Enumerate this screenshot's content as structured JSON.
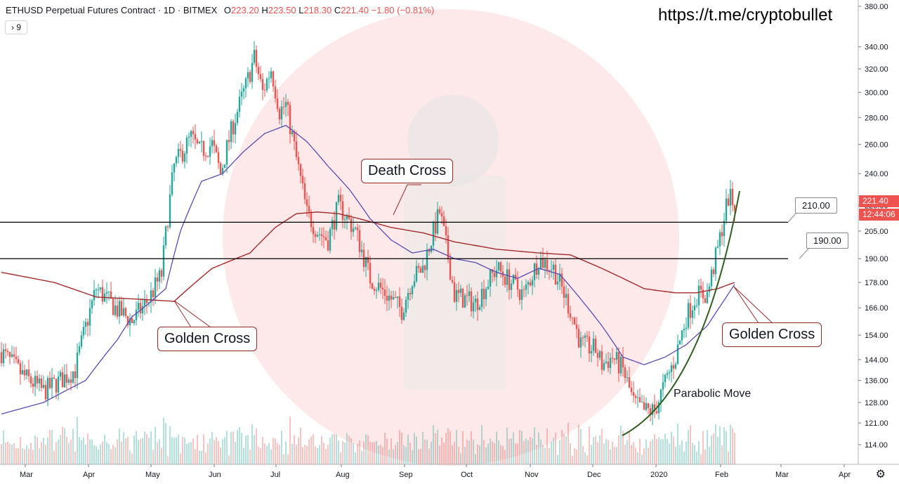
{
  "header": {
    "symbol": "ETHUSD Perpetual Futures Contract · 1D · BITMEX",
    "open_label": "O",
    "open": "223.20",
    "high_label": "H",
    "high": "223.50",
    "low_label": "L",
    "low": "218.30",
    "close_label": "C",
    "close": "221.40",
    "change": "−1.80 (−0.81%)"
  },
  "indicator_button": "› 9",
  "watermark": "https://t.me/cryptobullet",
  "annotations": {
    "death_cross": "Death Cross",
    "golden_cross_left": "Golden Cross",
    "golden_cross_right": "Golden Cross",
    "parabolic": "Parabolic Move",
    "level_210": "210.00",
    "level_190": "190.00"
  },
  "price_tag": {
    "price": "221.40",
    "countdown": "12:44:06"
  },
  "settings_icon": "gear-icon",
  "colors": {
    "up": "#26a69a",
    "down": "#ef5350",
    "ma_fast": "#5b4bb3",
    "ma_slow": "#a52a2a",
    "curve": "#2e5e1e",
    "level_line": "#000000",
    "background_circle": "#fde9e9"
  },
  "chart_data": {
    "type": "candlestick",
    "scale": "log",
    "y_ticks": [
      114,
      121,
      128,
      136,
      144,
      154,
      166,
      178,
      190,
      205,
      220,
      240,
      260,
      280,
      300,
      320,
      340,
      380
    ],
    "ylim": [
      108,
      385
    ],
    "x_months": [
      "Mar",
      "Apr",
      "May",
      "Jun",
      "Jul",
      "Aug",
      "Sep",
      "Oct",
      "Nov",
      "Dec",
      "2020",
      "Feb",
      "Mar",
      "Apr"
    ],
    "horizontal_levels": [
      210,
      190
    ],
    "close_path_days": [
      0,
      10,
      20,
      28,
      35,
      45,
      55,
      62,
      70,
      76,
      82,
      90,
      94,
      100,
      104,
      110,
      116,
      120,
      124,
      128,
      132,
      135,
      140,
      145,
      150,
      155,
      160,
      168,
      175,
      180,
      185,
      190,
      195,
      200,
      208,
      215,
      225,
      235,
      242,
      248,
      255,
      262,
      270,
      275,
      282,
      285,
      290,
      295,
      300,
      305,
      310,
      315,
      320,
      325,
      330,
      335,
      340,
      345,
      348
    ],
    "close_path_values": [
      147,
      138,
      132,
      136,
      140,
      175,
      165,
      160,
      170,
      182,
      245,
      265,
      255,
      260,
      240,
      275,
      305,
      330,
      300,
      320,
      285,
      290,
      250,
      215,
      205,
      200,
      220,
      205,
      180,
      175,
      170,
      165,
      180,
      185,
      216,
      172,
      168,
      185,
      178,
      172,
      190,
      185,
      165,
      150,
      148,
      142,
      145,
      140,
      128,
      125,
      125,
      135,
      145,
      162,
      172,
      172,
      195,
      225,
      221
    ],
    "ma_fast_days": [
      0,
      20,
      40,
      55,
      62,
      70,
      78,
      85,
      95,
      105,
      115,
      125,
      135,
      145,
      155,
      165,
      175,
      185,
      195,
      205,
      215,
      225,
      235,
      245,
      255,
      265,
      275,
      285,
      295,
      305,
      315,
      325,
      335,
      342,
      348
    ],
    "ma_fast_values": [
      124,
      128,
      136,
      152,
      162,
      168,
      175,
      205,
      235,
      240,
      255,
      268,
      274,
      262,
      245,
      230,
      212,
      200,
      193,
      195,
      190,
      188,
      183,
      180,
      185,
      182,
      170,
      158,
      145,
      142,
      145,
      150,
      158,
      168,
      177
    ],
    "ma_slow_days": [
      0,
      25,
      45,
      65,
      82,
      100,
      118,
      130,
      140,
      150,
      160,
      170,
      185,
      200,
      215,
      235,
      255,
      270,
      285,
      295,
      305,
      312,
      320,
      330,
      340,
      348
    ],
    "ma_slow_values": [
      183,
      178,
      171,
      170,
      169,
      185,
      193,
      207,
      215,
      216,
      215,
      212,
      207,
      204,
      199,
      195,
      193,
      192,
      185,
      180,
      175,
      174,
      173,
      173,
      175,
      178
    ]
  }
}
